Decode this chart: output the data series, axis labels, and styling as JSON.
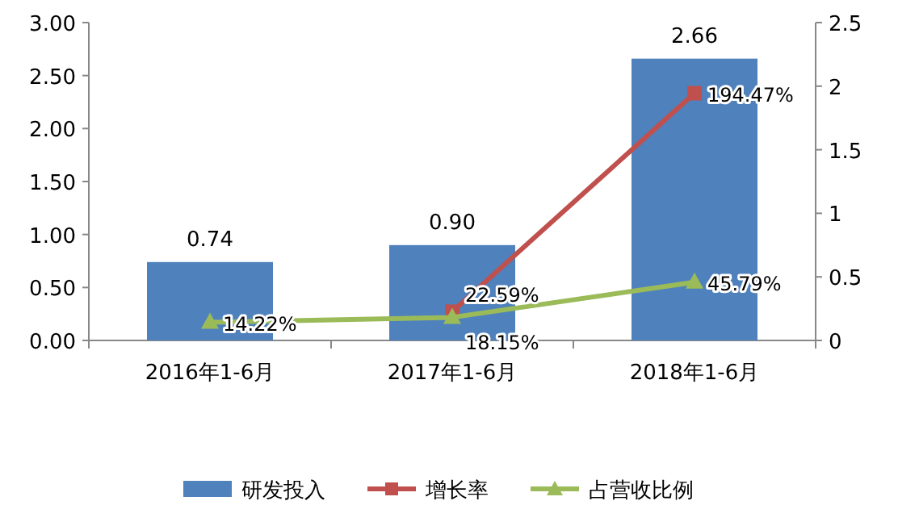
{
  "chart_data": {
    "type": "bar",
    "categories": [
      "2016年1-6月",
      "2017年1-6月",
      "2018年1-6月"
    ],
    "series": [
      {
        "name": "研发投入",
        "color": "#4f81bd",
        "values": [
          0.74,
          0.9,
          2.66
        ],
        "value_labels": [
          "0.74",
          "0.90",
          "2.66"
        ]
      },
      {
        "name": "增长率",
        "type": "line",
        "axis": "y2",
        "color": "#c0504d",
        "marker": "square",
        "values": [
          null,
          0.2259,
          1.9447
        ],
        "value_labels": [
          null,
          "22.59%",
          "194.47%"
        ]
      },
      {
        "name": "占营收比例",
        "type": "line",
        "axis": "y2",
        "color": "#9bbb59",
        "marker": "triangle",
        "values": [
          0.1422,
          0.1815,
          0.4579
        ],
        "value_labels": [
          "14.22%",
          "18.15%",
          "45.79%"
        ]
      }
    ],
    "ylim": [
      0,
      3
    ],
    "yticks": [
      {
        "value": 0,
        "label": "0.00"
      },
      {
        "value": 0.5,
        "label": "0.50"
      },
      {
        "value": 1,
        "label": "1.00"
      },
      {
        "value": 1.5,
        "label": "1.50"
      },
      {
        "value": 2,
        "label": "2.00"
      },
      {
        "value": 2.5,
        "label": "2.50"
      },
      {
        "value": 3,
        "label": "3.00"
      }
    ],
    "y2lim": [
      0,
      2.5
    ],
    "y2ticks": [
      0,
      0.5,
      1,
      1.5,
      2,
      2.5
    ],
    "legend": "bottom",
    "grid": false
  }
}
